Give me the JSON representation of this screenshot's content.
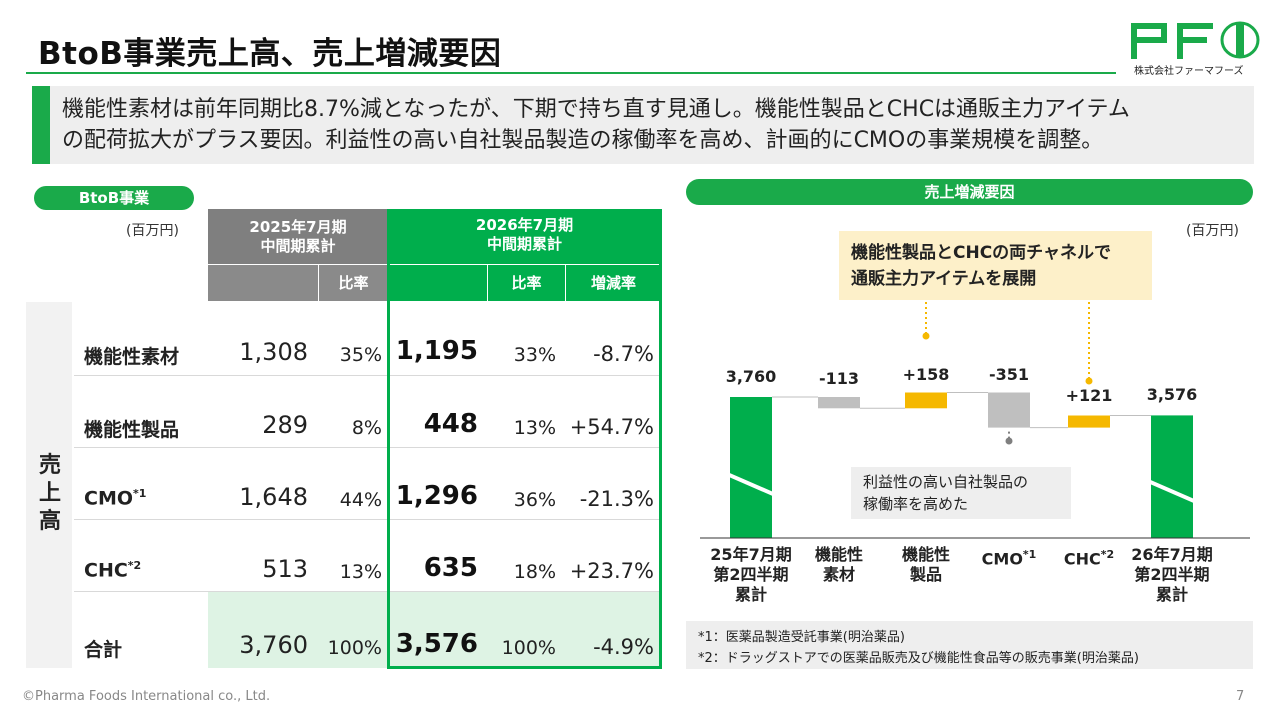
{
  "header": {
    "title": "BtoB事業売上高、売上増減要因",
    "logo_text": "PFI",
    "logo_sub": "株式会社ファーマフーズ"
  },
  "summary": {
    "line1": "機能性素材は前年同期比8.7%減となったが、下期で持ち直す見通し。機能性製品とCHCは通販主力アイテム",
    "line2": "の配荷拡大がプラス要因。利益性の高い自社製品製造の稼働率を高め、計画的にCMOの事業規模を調整。"
  },
  "table": {
    "section_label": "BtoB事業",
    "unit": "(百万円)",
    "col_prev_line1": "2025年7月期",
    "col_prev_line2": "中間期累計",
    "col_cur_line1": "2026年7月期",
    "col_cur_line2": "中間期累計",
    "sub_ratio": "比率",
    "sub_ratio2": "比率",
    "sub_change": "増減率",
    "side_label": "売上高",
    "rows": [
      {
        "label": "機能性素材",
        "sup": "",
        "prev": "1,308",
        "prev_pct": "35%",
        "cur": "1,195",
        "cur_pct": "33%",
        "change": "-8.7%"
      },
      {
        "label": "機能性製品",
        "sup": "",
        "prev": "289",
        "prev_pct": "8%",
        "cur": "448",
        "cur_pct": "13%",
        "change": "+54.7%"
      },
      {
        "label": "CMO",
        "sup": "*1",
        "prev": "1,648",
        "prev_pct": "44%",
        "cur": "1,296",
        "cur_pct": "36%",
        "change": "-21.3%"
      },
      {
        "label": "CHC",
        "sup": "*2",
        "prev": "513",
        "prev_pct": "13%",
        "cur": "635",
        "cur_pct": "18%",
        "change": "+23.7%"
      },
      {
        "label": "合計",
        "sup": "",
        "prev": "3,760",
        "prev_pct": "100%",
        "cur": "3,576",
        "cur_pct": "100%",
        "change": "-4.9%"
      }
    ]
  },
  "chart_section": {
    "label": "売上増減要因",
    "unit": "(百万円)",
    "callout_top_line1": "機能性製品とCHCの両チャネルで",
    "callout_top_line2": "通販主力アイテムを展開",
    "callout_bottom_line1": "利益性の高い自社製品の",
    "callout_bottom_line2": "稼働率を高めた",
    "note1": "*1：医薬品製造受託事業(明治薬品)",
    "note2": "*2：ドラッグストアでの医薬品販売及び機能性食品等の販売事業(明治薬品)"
  },
  "chart_data": {
    "type": "waterfall",
    "title": "売上増減要因",
    "unit": "百万円",
    "categories": [
      {
        "line1": "25年7月期",
        "line2": "第2四半期",
        "line3": "累計",
        "sup": ""
      },
      {
        "line1": "機能性",
        "line2": "素材",
        "line3": "",
        "sup": ""
      },
      {
        "line1": "機能性",
        "line2": "製品",
        "line3": "",
        "sup": ""
      },
      {
        "line1": "CMO",
        "line2": "",
        "line3": "",
        "sup": "*1"
      },
      {
        "line1": "CHC",
        "line2": "",
        "line3": "",
        "sup": "*2"
      },
      {
        "line1": "26年7月期",
        "line2": "第2四半期",
        "line3": "累計",
        "sup": ""
      }
    ],
    "values": [
      3760,
      -113,
      158,
      -351,
      121,
      3576
    ],
    "kinds": [
      "total",
      "delta",
      "delta",
      "delta",
      "delta",
      "total"
    ],
    "labels": [
      "3,760",
      "-113",
      "+158",
      "-351",
      "+121",
      "3,576"
    ],
    "ylim": [
      2800,
      3800
    ],
    "colors": {
      "total": "#00ae4c",
      "increase": "#f5b800",
      "decrease": "#bfbfbf"
    }
  },
  "footer": {
    "copyright": "©Pharma Foods International co., Ltd.",
    "page": "7"
  },
  "colors": {
    "brand_green": "#00ae4c",
    "header_gray": "#7f7f7f",
    "total_row": "#def3e4",
    "callout_yellow": "#fdf0c9"
  }
}
